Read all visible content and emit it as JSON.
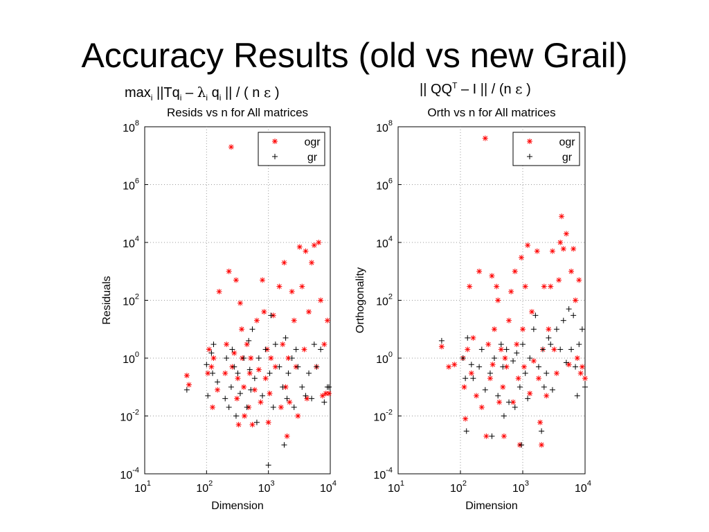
{
  "slide": {
    "title": "Accuracy Results (old vs new Grail)",
    "formula_left": {
      "max": "max",
      "i1": "i",
      "norm_open": " ||Tq",
      "i2": "i",
      "dash": " – ",
      "lambda": "λ",
      "i3": "i",
      "q": " q",
      "i4": "i",
      "tail": " || / ( n ",
      "eps": "ε",
      "close": " )"
    },
    "formula_right": {
      "lead": "|| QQ",
      "T": "T",
      "mid": " – I || / (n ",
      "eps": "ε",
      "close": " )"
    }
  },
  "colors": {
    "ogr": "#ff0000",
    "gr": "#000000",
    "grid": "#999999",
    "axes": "#000000"
  },
  "chart_data": [
    {
      "type": "scatter",
      "title": "Resids vs n for All matrices",
      "xlabel": "Dimension",
      "ylabel": "Residuals",
      "xscale": "log",
      "yscale": "log",
      "xlim": [
        10,
        10000
      ],
      "ylim": [
        0.0001,
        100000000
      ],
      "xticks": [
        {
          "base": "10",
          "exp": "1"
        },
        {
          "base": "10",
          "exp": "2"
        },
        {
          "base": "10",
          "exp": "3"
        },
        {
          "base": "10",
          "exp": "4"
        }
      ],
      "yticks": [
        {
          "base": "10",
          "exp": "-4"
        },
        {
          "base": "10",
          "exp": "-2"
        },
        {
          "base": "10",
          "exp": "0"
        },
        {
          "base": "10",
          "exp": "2"
        },
        {
          "base": "10",
          "exp": "4"
        },
        {
          "base": "10",
          "exp": "6"
        },
        {
          "base": "10",
          "exp": "8"
        }
      ],
      "grid": true,
      "legend_position": "top-right",
      "series": [
        {
          "name": "ogr",
          "marker": "*",
          "points": [
            [
              48,
              0.25
            ],
            [
              52,
              0.12
            ],
            [
              105,
              0.3
            ],
            [
              110,
              2
            ],
            [
              120,
              0.5
            ],
            [
              125,
              0.02
            ],
            [
              130,
              1
            ],
            [
              150,
              0.08
            ],
            [
              160,
              200
            ],
            [
              200,
              0.3
            ],
            [
              210,
              3
            ],
            [
              230,
              1000
            ],
            [
              250,
              20000000
            ],
            [
              260,
              0.5
            ],
            [
              280,
              1.5
            ],
            [
              300,
              500
            ],
            [
              310,
              0.04
            ],
            [
              320,
              0.2
            ],
            [
              330,
              0.005
            ],
            [
              350,
              80
            ],
            [
              370,
              10
            ],
            [
              380,
              1
            ],
            [
              400,
              0.1
            ],
            [
              410,
              0.01
            ],
            [
              450,
              3
            ],
            [
              480,
              0.02
            ],
            [
              500,
              0.3
            ],
            [
              520,
              1
            ],
            [
              550,
              0.005
            ],
            [
              600,
              0.08
            ],
            [
              650,
              20
            ],
            [
              700,
              0.4
            ],
            [
              750,
              0.03
            ],
            [
              800,
              500
            ],
            [
              850,
              40
            ],
            [
              900,
              0.2
            ],
            [
              950,
              2
            ],
            [
              1000,
              0.006
            ],
            [
              1050,
              0.06
            ],
            [
              1100,
              1
            ],
            [
              1200,
              30
            ],
            [
              1300,
              0.5
            ],
            [
              1500,
              300
            ],
            [
              1600,
              0.02
            ],
            [
              1700,
              3
            ],
            [
              1800,
              2000
            ],
            [
              1900,
              0.1
            ],
            [
              2000,
              0.002
            ],
            [
              2100,
              1
            ],
            [
              2200,
              0.03
            ],
            [
              2400,
              200
            ],
            [
              2600,
              20
            ],
            [
              2800,
              0.5
            ],
            [
              3000,
              0.01
            ],
            [
              3200,
              7000
            ],
            [
              3500,
              300
            ],
            [
              3800,
              2
            ],
            [
              4000,
              5000
            ],
            [
              4200,
              0.04
            ],
            [
              4500,
              40
            ],
            [
              5000,
              2000
            ],
            [
              5500,
              8000
            ],
            [
              6000,
              0.5
            ],
            [
              6500,
              10000
            ],
            [
              7000,
              100
            ],
            [
              7500,
              0.05
            ],
            [
              8000,
              3
            ],
            [
              8500,
              0.06
            ],
            [
              9000,
              20
            ],
            [
              9500,
              0.06
            ]
          ]
        },
        {
          "name": "gr",
          "marker": "+",
          "points": [
            [
              48,
              0.08
            ],
            [
              100,
              0.6
            ],
            [
              105,
              0.05
            ],
            [
              120,
              1.5
            ],
            [
              125,
              0.3
            ],
            [
              130,
              3
            ],
            [
              150,
              0.15
            ],
            [
              200,
              0.04
            ],
            [
              210,
              1
            ],
            [
              230,
              0.02
            ],
            [
              250,
              0.1
            ],
            [
              260,
              2
            ],
            [
              280,
              0.5
            ],
            [
              300,
              0.01
            ],
            [
              320,
              0.3
            ],
            [
              350,
              0.06
            ],
            [
              400,
              1
            ],
            [
              450,
              0.02
            ],
            [
              480,
              4
            ],
            [
              500,
              0.4
            ],
            [
              520,
              0.08
            ],
            [
              550,
              10
            ],
            [
              600,
              0.2
            ],
            [
              650,
              0.006
            ],
            [
              700,
              1
            ],
            [
              800,
              0.05
            ],
            [
              900,
              2
            ],
            [
              1000,
              0.0002
            ],
            [
              1050,
              0.3
            ],
            [
              1100,
              30
            ],
            [
              1200,
              0.02
            ],
            [
              1300,
              3
            ],
            [
              1500,
              0.5
            ],
            [
              1700,
              0.1
            ],
            [
              1800,
              0.001
            ],
            [
              1900,
              5
            ],
            [
              2000,
              0.04
            ],
            [
              2100,
              0.3
            ],
            [
              2400,
              1
            ],
            [
              2600,
              0.02
            ],
            [
              2800,
              2
            ],
            [
              3000,
              0.5
            ],
            [
              3500,
              0.1
            ],
            [
              4000,
              0.05
            ],
            [
              4500,
              0.3
            ],
            [
              5000,
              0.04
            ],
            [
              5500,
              3
            ],
            [
              6000,
              0.5
            ],
            [
              7000,
              2
            ],
            [
              8000,
              0.03
            ],
            [
              9000,
              0.1
            ],
            [
              9500,
              0.1
            ]
          ]
        }
      ]
    },
    {
      "type": "scatter",
      "title": "Orth vs n for All matrices",
      "xlabel": "Dimension",
      "ylabel": "Orthogonality",
      "xscale": "log",
      "yscale": "log",
      "xlim": [
        10,
        10000
      ],
      "ylim": [
        0.0001,
        100000000
      ],
      "xticks": [
        {
          "base": "10",
          "exp": "1"
        },
        {
          "base": "10",
          "exp": "2"
        },
        {
          "base": "10",
          "exp": "3"
        },
        {
          "base": "10",
          "exp": "4"
        }
      ],
      "yticks": [
        {
          "base": "10",
          "exp": "-4"
        },
        {
          "base": "10",
          "exp": "-2"
        },
        {
          "base": "10",
          "exp": "0"
        },
        {
          "base": "10",
          "exp": "2"
        },
        {
          "base": "10",
          "exp": "4"
        },
        {
          "base": "10",
          "exp": "6"
        },
        {
          "base": "10",
          "exp": "8"
        }
      ],
      "grid": true,
      "legend_position": "top-right",
      "series": [
        {
          "name": "ogr",
          "marker": "*",
          "points": [
            [
              50,
              2.5
            ],
            [
              65,
              0.5
            ],
            [
              80,
              0.6
            ],
            [
              110,
              1
            ],
            [
              115,
              0.1
            ],
            [
              120,
              0.008
            ],
            [
              130,
              2
            ],
            [
              140,
              300
            ],
            [
              150,
              0.3
            ],
            [
              160,
              5
            ],
            [
              180,
              0.05
            ],
            [
              200,
              1000
            ],
            [
              220,
              0.02
            ],
            [
              250,
              40000000
            ],
            [
              260,
              0.002
            ],
            [
              280,
              3
            ],
            [
              300,
              0.2
            ],
            [
              320,
              700
            ],
            [
              330,
              0.6
            ],
            [
              350,
              10
            ],
            [
              380,
              300
            ],
            [
              400,
              100
            ],
            [
              420,
              0.03
            ],
            [
              450,
              2
            ],
            [
              480,
              0.1
            ],
            [
              500,
              0.002
            ],
            [
              520,
              1
            ],
            [
              550,
              0.5
            ],
            [
              600,
              20
            ],
            [
              650,
              200
            ],
            [
              700,
              0.03
            ],
            [
              750,
              1000
            ],
            [
              800,
              3
            ],
            [
              850,
              0.2
            ],
            [
              900,
              0.001
            ],
            [
              950,
              3000
            ],
            [
              1000,
              10
            ],
            [
              1050,
              0.5
            ],
            [
              1100,
              300
            ],
            [
              1200,
              8000
            ],
            [
              1300,
              0.06
            ],
            [
              1400,
              40
            ],
            [
              1500,
              0.8
            ],
            [
              1700,
              5000
            ],
            [
              1800,
              0.2
            ],
            [
              1900,
              0.006
            ],
            [
              2000,
              0.001
            ],
            [
              2100,
              2
            ],
            [
              2200,
              300
            ],
            [
              2400,
              0.05
            ],
            [
              2600,
              10
            ],
            [
              2800,
              300
            ],
            [
              3000,
              5000
            ],
            [
              3200,
              2
            ],
            [
              3500,
              0.3
            ],
            [
              3800,
              500
            ],
            [
              4000,
              10000
            ],
            [
              4200,
              80000
            ],
            [
              4500,
              6000
            ],
            [
              5000,
              20000
            ],
            [
              5500,
              0.6
            ],
            [
              6000,
              1000
            ],
            [
              6500,
              6000
            ],
            [
              7000,
              100
            ],
            [
              7500,
              1
            ],
            [
              8000,
              500
            ],
            [
              8500,
              0.3
            ],
            [
              9000,
              0.5
            ],
            [
              10000,
              0.2
            ]
          ]
        },
        {
          "name": "gr",
          "marker": "+",
          "points": [
            [
              50,
              4
            ],
            [
              110,
              1
            ],
            [
              120,
              0.2
            ],
            [
              125,
              0.003
            ],
            [
              130,
              5
            ],
            [
              150,
              0.6
            ],
            [
              160,
              0.2
            ],
            [
              200,
              0.5
            ],
            [
              220,
              2
            ],
            [
              250,
              0.08
            ],
            [
              300,
              0.3
            ],
            [
              320,
              0.002
            ],
            [
              350,
              1
            ],
            [
              400,
              0.05
            ],
            [
              450,
              3
            ],
            [
              480,
              0.5
            ],
            [
              500,
              0.01
            ],
            [
              550,
              2
            ],
            [
              600,
              0.03
            ],
            [
              700,
              0.8
            ],
            [
              750,
              0.02
            ],
            [
              800,
              1.5
            ],
            [
              900,
              0.1
            ],
            [
              950,
              0.001
            ],
            [
              1000,
              3
            ],
            [
              1100,
              0.3
            ],
            [
              1200,
              0.04
            ],
            [
              1300,
              1
            ],
            [
              1500,
              10
            ],
            [
              1600,
              30
            ],
            [
              1800,
              0.5
            ],
            [
              2000,
              0.003
            ],
            [
              2100,
              2
            ],
            [
              2200,
              0.1
            ],
            [
              2400,
              0.3
            ],
            [
              2600,
              5
            ],
            [
              2800,
              3
            ],
            [
              3000,
              0.08
            ],
            [
              3500,
              10
            ],
            [
              4000,
              2
            ],
            [
              4500,
              20
            ],
            [
              5000,
              0.7
            ],
            [
              5500,
              50
            ],
            [
              6000,
              2
            ],
            [
              6500,
              30
            ],
            [
              7000,
              0.5
            ],
            [
              7500,
              0.05
            ],
            [
              8000,
              3
            ],
            [
              9000,
              10
            ],
            [
              10000,
              0.1
            ]
          ]
        }
      ]
    }
  ]
}
